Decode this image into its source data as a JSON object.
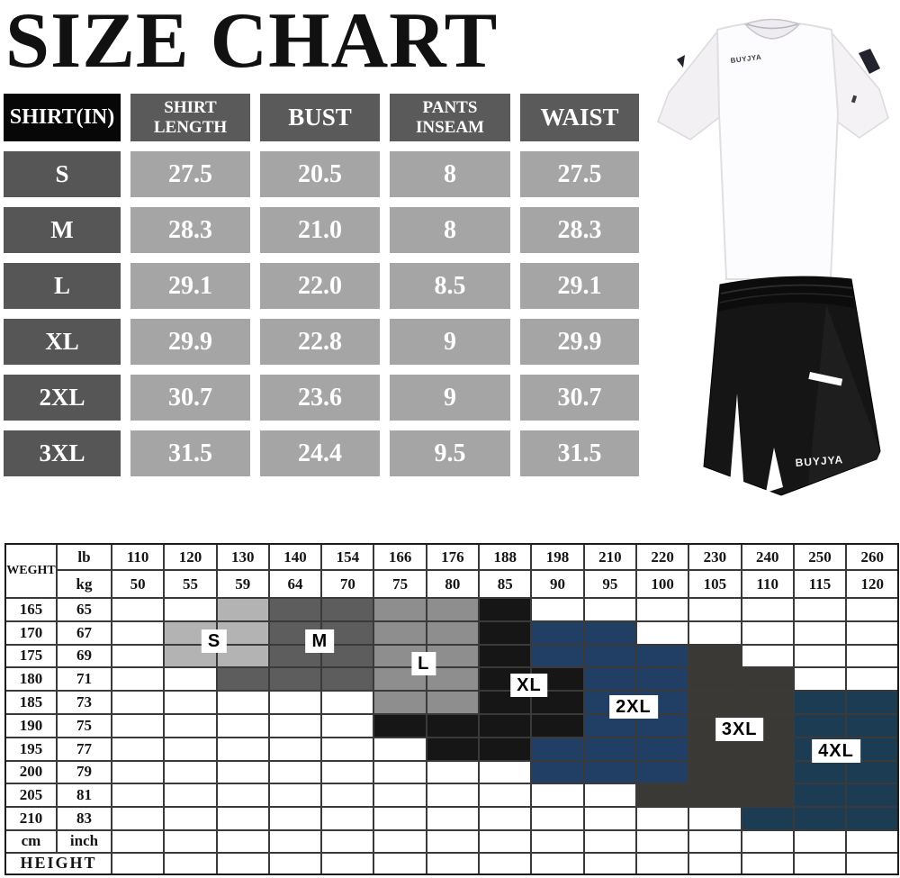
{
  "title": "SIZE CHART",
  "products": {
    "shirt_logo_text": "BUYJYA",
    "shorts_logo_text": "BUYJYA"
  },
  "chart_data": [
    {
      "type": "table",
      "title": "SIZE CHART",
      "columns": [
        "SHIRT(IN)",
        "SHIRT LENGTH",
        "BUST",
        "PANTS INSEAM",
        "WAIST"
      ],
      "rows": [
        [
          "S",
          "27.5",
          "20.5",
          "8",
          "27.5"
        ],
        [
          "M",
          "28.3",
          "21.0",
          "8",
          "28.3"
        ],
        [
          "L",
          "29.1",
          "22.0",
          "8.5",
          "29.1"
        ],
        [
          "XL",
          "29.9",
          "22.8",
          "9",
          "29.9"
        ],
        [
          "2XL",
          "30.7",
          "23.6",
          "9",
          "30.7"
        ],
        [
          "3XL",
          "31.5",
          "24.4",
          "9.5",
          "31.5"
        ]
      ]
    },
    {
      "type": "heatmap",
      "x_axis": {
        "label": "WEGHT",
        "units": [
          "lb",
          "kg"
        ],
        "lb": [
          "110",
          "120",
          "130",
          "140",
          "154",
          "166",
          "176",
          "188",
          "198",
          "210",
          "220",
          "230",
          "240",
          "250",
          "260"
        ],
        "kg": [
          "50",
          "55",
          "59",
          "64",
          "70",
          "75",
          "80",
          "85",
          "90",
          "95",
          "100",
          "105",
          "110",
          "115",
          "120"
        ]
      },
      "y_axis": {
        "label": "HEIGHT",
        "units": [
          "cm",
          "inch"
        ],
        "cm": [
          "165",
          "170",
          "175",
          "180",
          "185",
          "190",
          "195",
          "200",
          "205",
          "210"
        ],
        "inch": [
          "65",
          "67",
          "69",
          "71",
          "73",
          "75",
          "77",
          "79",
          "81",
          "83"
        ]
      },
      "zone_colors": {
        "w": "#ffffff",
        "s": "#b3b3b3",
        "m": "#5d5d5d",
        "l": "#8e8e8e",
        "k": "#161616",
        "b": "#213e64",
        "c": "#3b3935",
        "t": "#1b3c52"
      },
      "legend": {
        "s": "S",
        "m": "M",
        "l": "L",
        "k": "XL",
        "b": "2XL",
        "c": "3XL",
        "t": "4XL"
      },
      "cells": [
        "wwsmmllkwwwwwww",
        "wssmmllkbbwwwww",
        "wssmmllkbbbcwww",
        "wwmmmllkkbbccww",
        "wwwwwllkkbbcctt",
        "wwwwwkkkkbbcctt",
        "wwwwwwkkbbbcctt",
        "wwwwwwwwbbbcctt",
        "wwwwwwwwwwccctt",
        "wwwwwwwwwwwwttt"
      ],
      "labels": [
        {
          "text": "S",
          "col": 1.94,
          "row": 1.82
        },
        {
          "text": "M",
          "col": 3.95,
          "row": 1.82
        },
        {
          "text": "L",
          "col": 5.93,
          "row": 2.79
        },
        {
          "text": "XL",
          "col": 7.94,
          "row": 3.72
        },
        {
          "text": "2XL",
          "col": 9.93,
          "row": 4.65
        },
        {
          "text": "3XL",
          "col": 11.95,
          "row": 5.62
        },
        {
          "text": "4XL",
          "col": 13.79,
          "row": 6.55
        }
      ]
    }
  ]
}
